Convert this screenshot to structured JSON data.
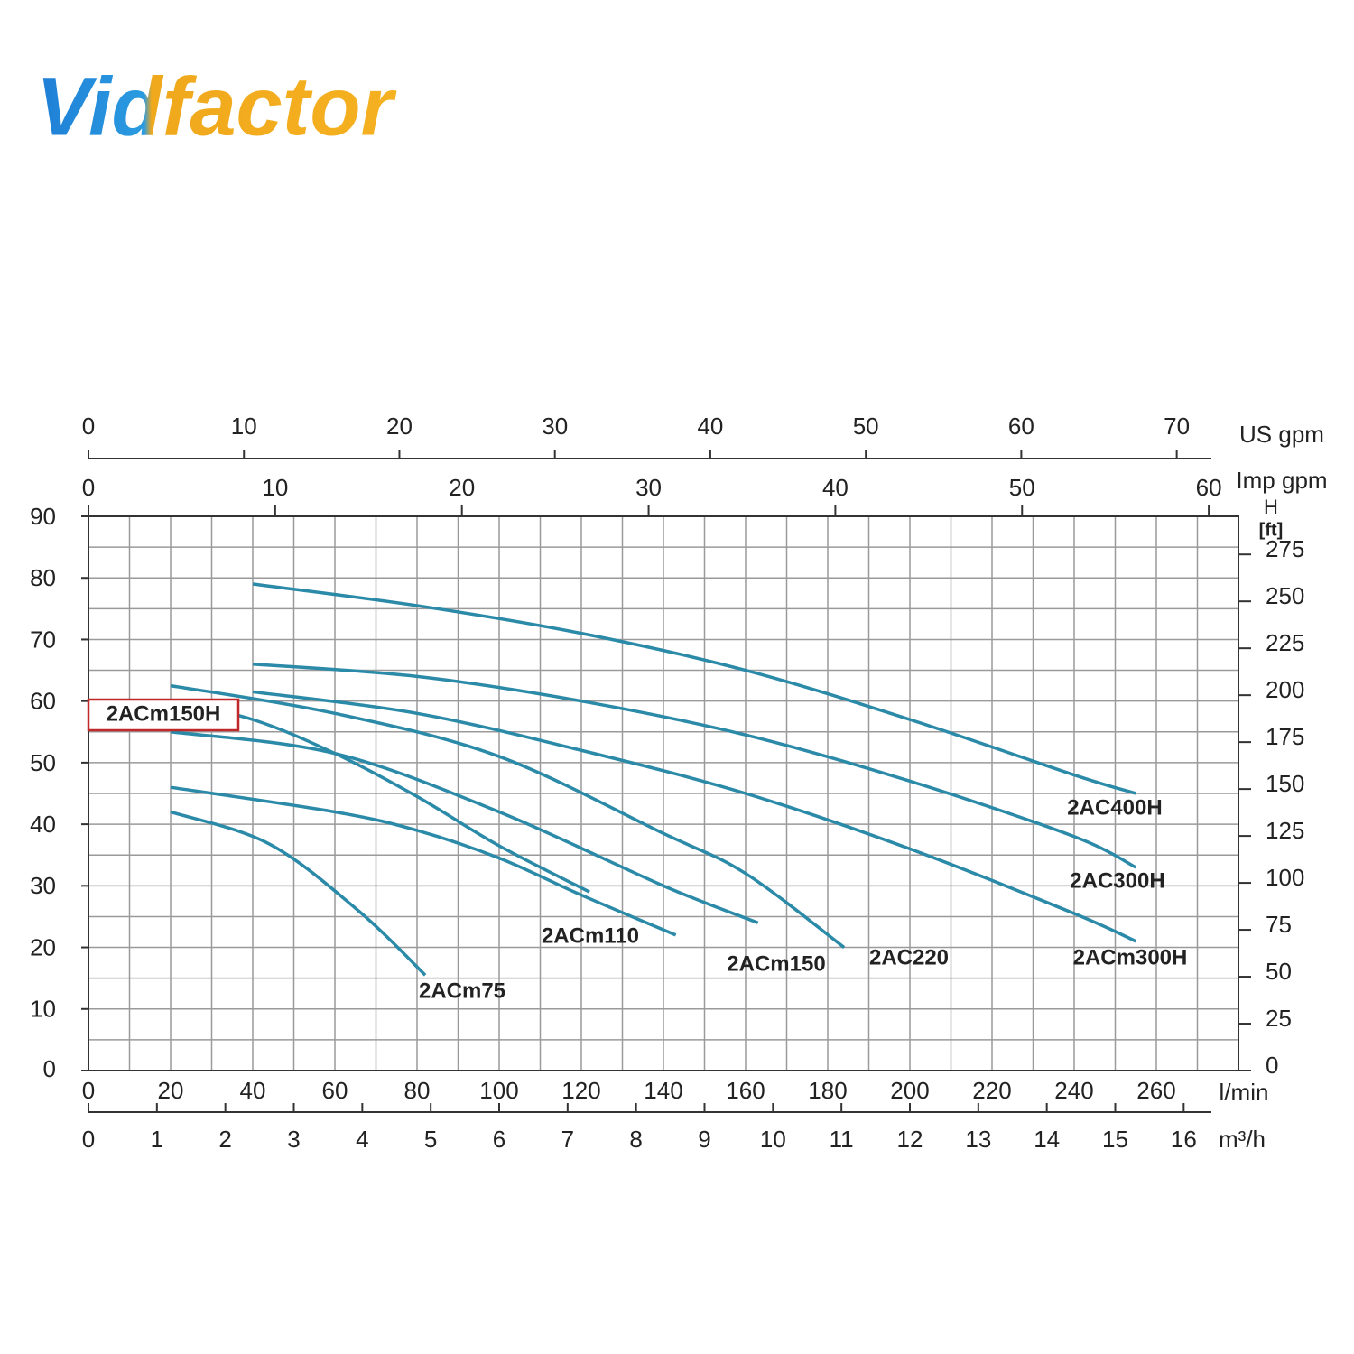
{
  "logo": "Vidfactor",
  "chart_data": {
    "type": "line",
    "x_label": "l/min",
    "xlim": [
      0,
      280
    ],
    "xticks": [
      0,
      20,
      40,
      60,
      80,
      100,
      120,
      140,
      160,
      180,
      200,
      220,
      240,
      260
    ],
    "x_grid": [
      0,
      10,
      20,
      30,
      40,
      50,
      60,
      70,
      80,
      90,
      100,
      110,
      120,
      130,
      140,
      150,
      160,
      170,
      180,
      190,
      200,
      210,
      220,
      230,
      240,
      250,
      260,
      270,
      280
    ],
    "ylim": [
      0,
      90
    ],
    "yticks": [
      0,
      10,
      20,
      30,
      40,
      50,
      60,
      70,
      80,
      90
    ],
    "y_grid": [
      0,
      5,
      10,
      15,
      20,
      25,
      30,
      35,
      40,
      45,
      50,
      55,
      60,
      65,
      70,
      75,
      80,
      85,
      90
    ],
    "y2_label": "H",
    "y2_unit": "[ft]",
    "y2lim": [
      0,
      295.3
    ],
    "y2ticks": [
      0,
      25,
      50,
      75,
      100,
      125,
      150,
      175,
      200,
      225,
      250,
      275
    ],
    "m3h_axis": {
      "label": "m³/h",
      "xlim": [
        0,
        16.8
      ],
      "xticks": [
        0,
        1,
        2,
        3,
        4,
        5,
        6,
        7,
        8,
        9,
        10,
        11,
        12,
        13,
        14,
        15,
        16
      ]
    },
    "us_gpm_axis": {
      "label": "US gpm",
      "xlim": [
        0,
        73.97
      ],
      "xticks": [
        0,
        10,
        20,
        30,
        40,
        50,
        60,
        70
      ]
    },
    "imp_gpm_axis": {
      "label": "Imp gpm",
      "xlim": [
        0,
        61.59
      ],
      "xticks": [
        0,
        10,
        20,
        30,
        40,
        50,
        60
      ]
    },
    "grid": true,
    "series": [
      {
        "name": "2ACm75",
        "color": "#2a8aa8",
        "x": [
          20,
          44,
          66,
          82
        ],
        "values": [
          42,
          36.8,
          25.8,
          15.5
        ]
      },
      {
        "name": "2ACm110",
        "color": "#2a8aa8",
        "x": [
          20,
          60,
          80,
          100,
          120,
          143
        ],
        "values": [
          46,
          42,
          39,
          34.5,
          28.5,
          22
        ]
      },
      {
        "name": "2ACm150",
        "color": "#2a8aa8",
        "x": [
          20,
          60,
          100,
          140,
          163
        ],
        "values": [
          55,
          51.5,
          42,
          30,
          24
        ]
      },
      {
        "name": "2AC220",
        "color": "#2a8aa8",
        "x": [
          20,
          60,
          100,
          140,
          160,
          184
        ],
        "values": [
          62.5,
          58,
          51,
          38.5,
          32,
          20
        ]
      },
      {
        "name": "2ACm300H",
        "color": "#2a8aa8",
        "x": [
          40,
          80,
          120,
          160,
          200,
          240,
          255
        ],
        "values": [
          61.5,
          58,
          52,
          45,
          36,
          25.5,
          21
        ]
      },
      {
        "name": "2AC300H",
        "color": "#2a8aa8",
        "x": [
          40,
          80,
          120,
          160,
          200,
          240,
          255
        ],
        "values": [
          66,
          64,
          60,
          54.5,
          47,
          38,
          33
        ]
      },
      {
        "name": "2AC400H",
        "color": "#2a8aa8",
        "x": [
          40,
          80,
          120,
          160,
          200,
          240,
          255
        ],
        "values": [
          79,
          75.5,
          71,
          65,
          57,
          48,
          45
        ]
      },
      {
        "name": "2ACm150H",
        "color": "#2a8aa8",
        "highlighted": true,
        "x": [
          20,
          40,
          60,
          80,
          100,
          122
        ],
        "values": [
          60,
          57,
          51.5,
          44.5,
          36.5,
          29
        ]
      }
    ]
  }
}
